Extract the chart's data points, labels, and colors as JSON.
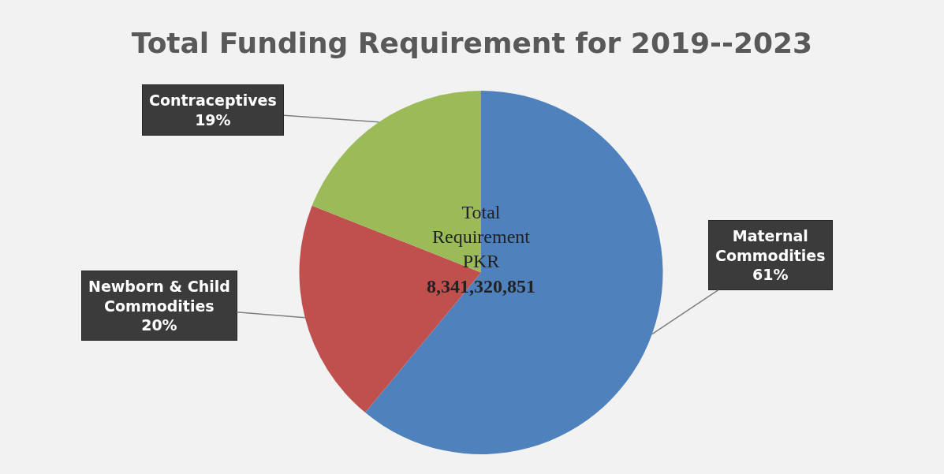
{
  "chart_data": {
    "type": "pie",
    "title": "Total Funding Requirement for 2019--2023",
    "categories": [
      "Maternal Commodities",
      "Newborn & Child Commodities",
      "Contraceptives"
    ],
    "values": [
      61,
      20,
      19
    ],
    "colors": [
      "#4f81bd",
      "#c0504d",
      "#9bbb59"
    ],
    "value_labels": [
      "61%",
      "20%",
      "19%"
    ],
    "annotations": [
      "Total Requirement PKR 8,341,320,851"
    ]
  }
}
